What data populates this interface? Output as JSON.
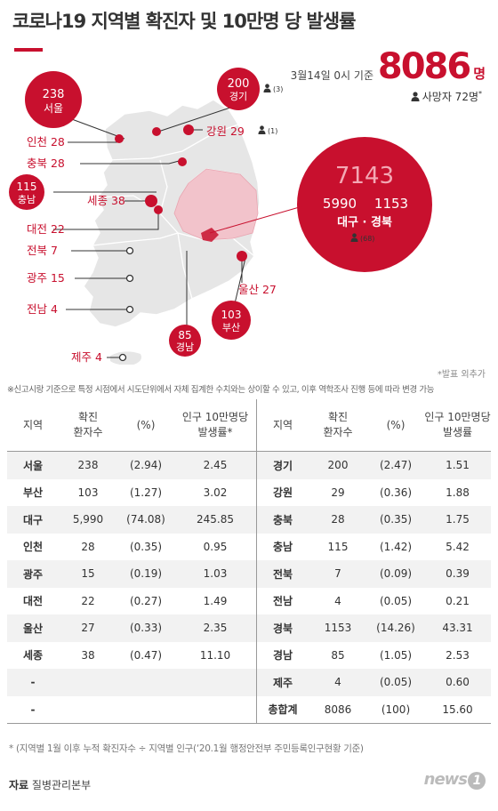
{
  "title": "코로나19 지역별 확진자 및 10만명 당 발생률",
  "headline": {
    "basis": "3월14일 0시 기준",
    "total": "8086",
    "unit": "명",
    "deaths": "사망자 72명",
    "deaths_mark": "*"
  },
  "map_labels": {
    "seoul_num": "238",
    "seoul_name": "서울",
    "gyeonggi_num": "200",
    "gyeonggi_name": "경기",
    "gyeonggi_deaths": "(3)",
    "incheon": "인천 28",
    "gangwon": "강원 29",
    "gangwon_deaths": "(1)",
    "chungbuk": "충북 28",
    "chungnam_num": "115",
    "chungnam_name": "충남",
    "sejong": "세종 38",
    "daejeon": "대전 22",
    "jeonbuk": "전북 7",
    "gwangju": "광주 15",
    "jeonnam": "전남 4",
    "jeju": "제주 4",
    "ulsan": "울산 27",
    "busan_num": "103",
    "busan_name": "부산",
    "gyeongnam_num": "85",
    "gyeongnam_name": "경남",
    "big_total": "7143",
    "daegu_num": "5990",
    "gyeongbuk_num": "1153",
    "big_name": "대구 · 경북",
    "big_deaths": "(68)"
  },
  "notes": {
    "announce_excluded": "*발표 외추가",
    "disclaimer": "※신고시랑 기준으로 특정 시점에서 시도단위에서 자체 집계한 수치와는 상이할 수 있고, 이후 역학조사 진행 등에 따라 변경 가능",
    "footnote": "* (지역별 1월 이후 누적 확진자수 ÷ 지역별 인구(‘20.1월 행정안전부 주민등록인구현황 기준)",
    "source_label": "자료",
    "source": "질병관리본부",
    "logo": "news",
    "logo_mark": "1"
  },
  "table": {
    "headers": {
      "region": "지역",
      "cases": "확진\n환자수",
      "pct": "(%)",
      "rate": "인구 10만명당\n발생률*",
      "rate2": "인구 10만명당\n발생률"
    }
  },
  "chart_data": {
    "type": "table",
    "title": "코로나19 지역별 확진자 및 10만명 당 발생률",
    "columns": [
      "지역",
      "확진 환자수",
      "(%)",
      "인구 10만명당 발생률"
    ],
    "left": [
      [
        "서울",
        "238",
        "(2.94)",
        "2.45"
      ],
      [
        "부산",
        "103",
        "(1.27)",
        "3.02"
      ],
      [
        "대구",
        "5,990",
        "(74.08)",
        "245.85"
      ],
      [
        "인천",
        "28",
        "(0.35)",
        "0.95"
      ],
      [
        "광주",
        "15",
        "(0.19)",
        "1.03"
      ],
      [
        "대전",
        "22",
        "(0.27)",
        "1.49"
      ],
      [
        "울산",
        "27",
        "(0.33)",
        "2.35"
      ],
      [
        "세종",
        "38",
        "(0.47)",
        "11.10"
      ],
      [
        "-",
        "",
        "",
        ""
      ],
      [
        "-",
        "",
        "",
        ""
      ]
    ],
    "right": [
      [
        "경기",
        "200",
        "(2.47)",
        "1.51"
      ],
      [
        "강원",
        "29",
        "(0.36)",
        "1.88"
      ],
      [
        "충북",
        "28",
        "(0.35)",
        "1.75"
      ],
      [
        "충남",
        "115",
        "(1.42)",
        "5.42"
      ],
      [
        "전북",
        "7",
        "(0.09)",
        "0.39"
      ],
      [
        "전남",
        "4",
        "(0.05)",
        "0.21"
      ],
      [
        "경북",
        "1153",
        "(14.26)",
        "43.31"
      ],
      [
        "경남",
        "85",
        "(1.05)",
        "2.53"
      ],
      [
        "제주",
        "4",
        "(0.05)",
        "0.60"
      ],
      [
        "총합계",
        "8086",
        "(100)",
        "15.60"
      ]
    ]
  }
}
